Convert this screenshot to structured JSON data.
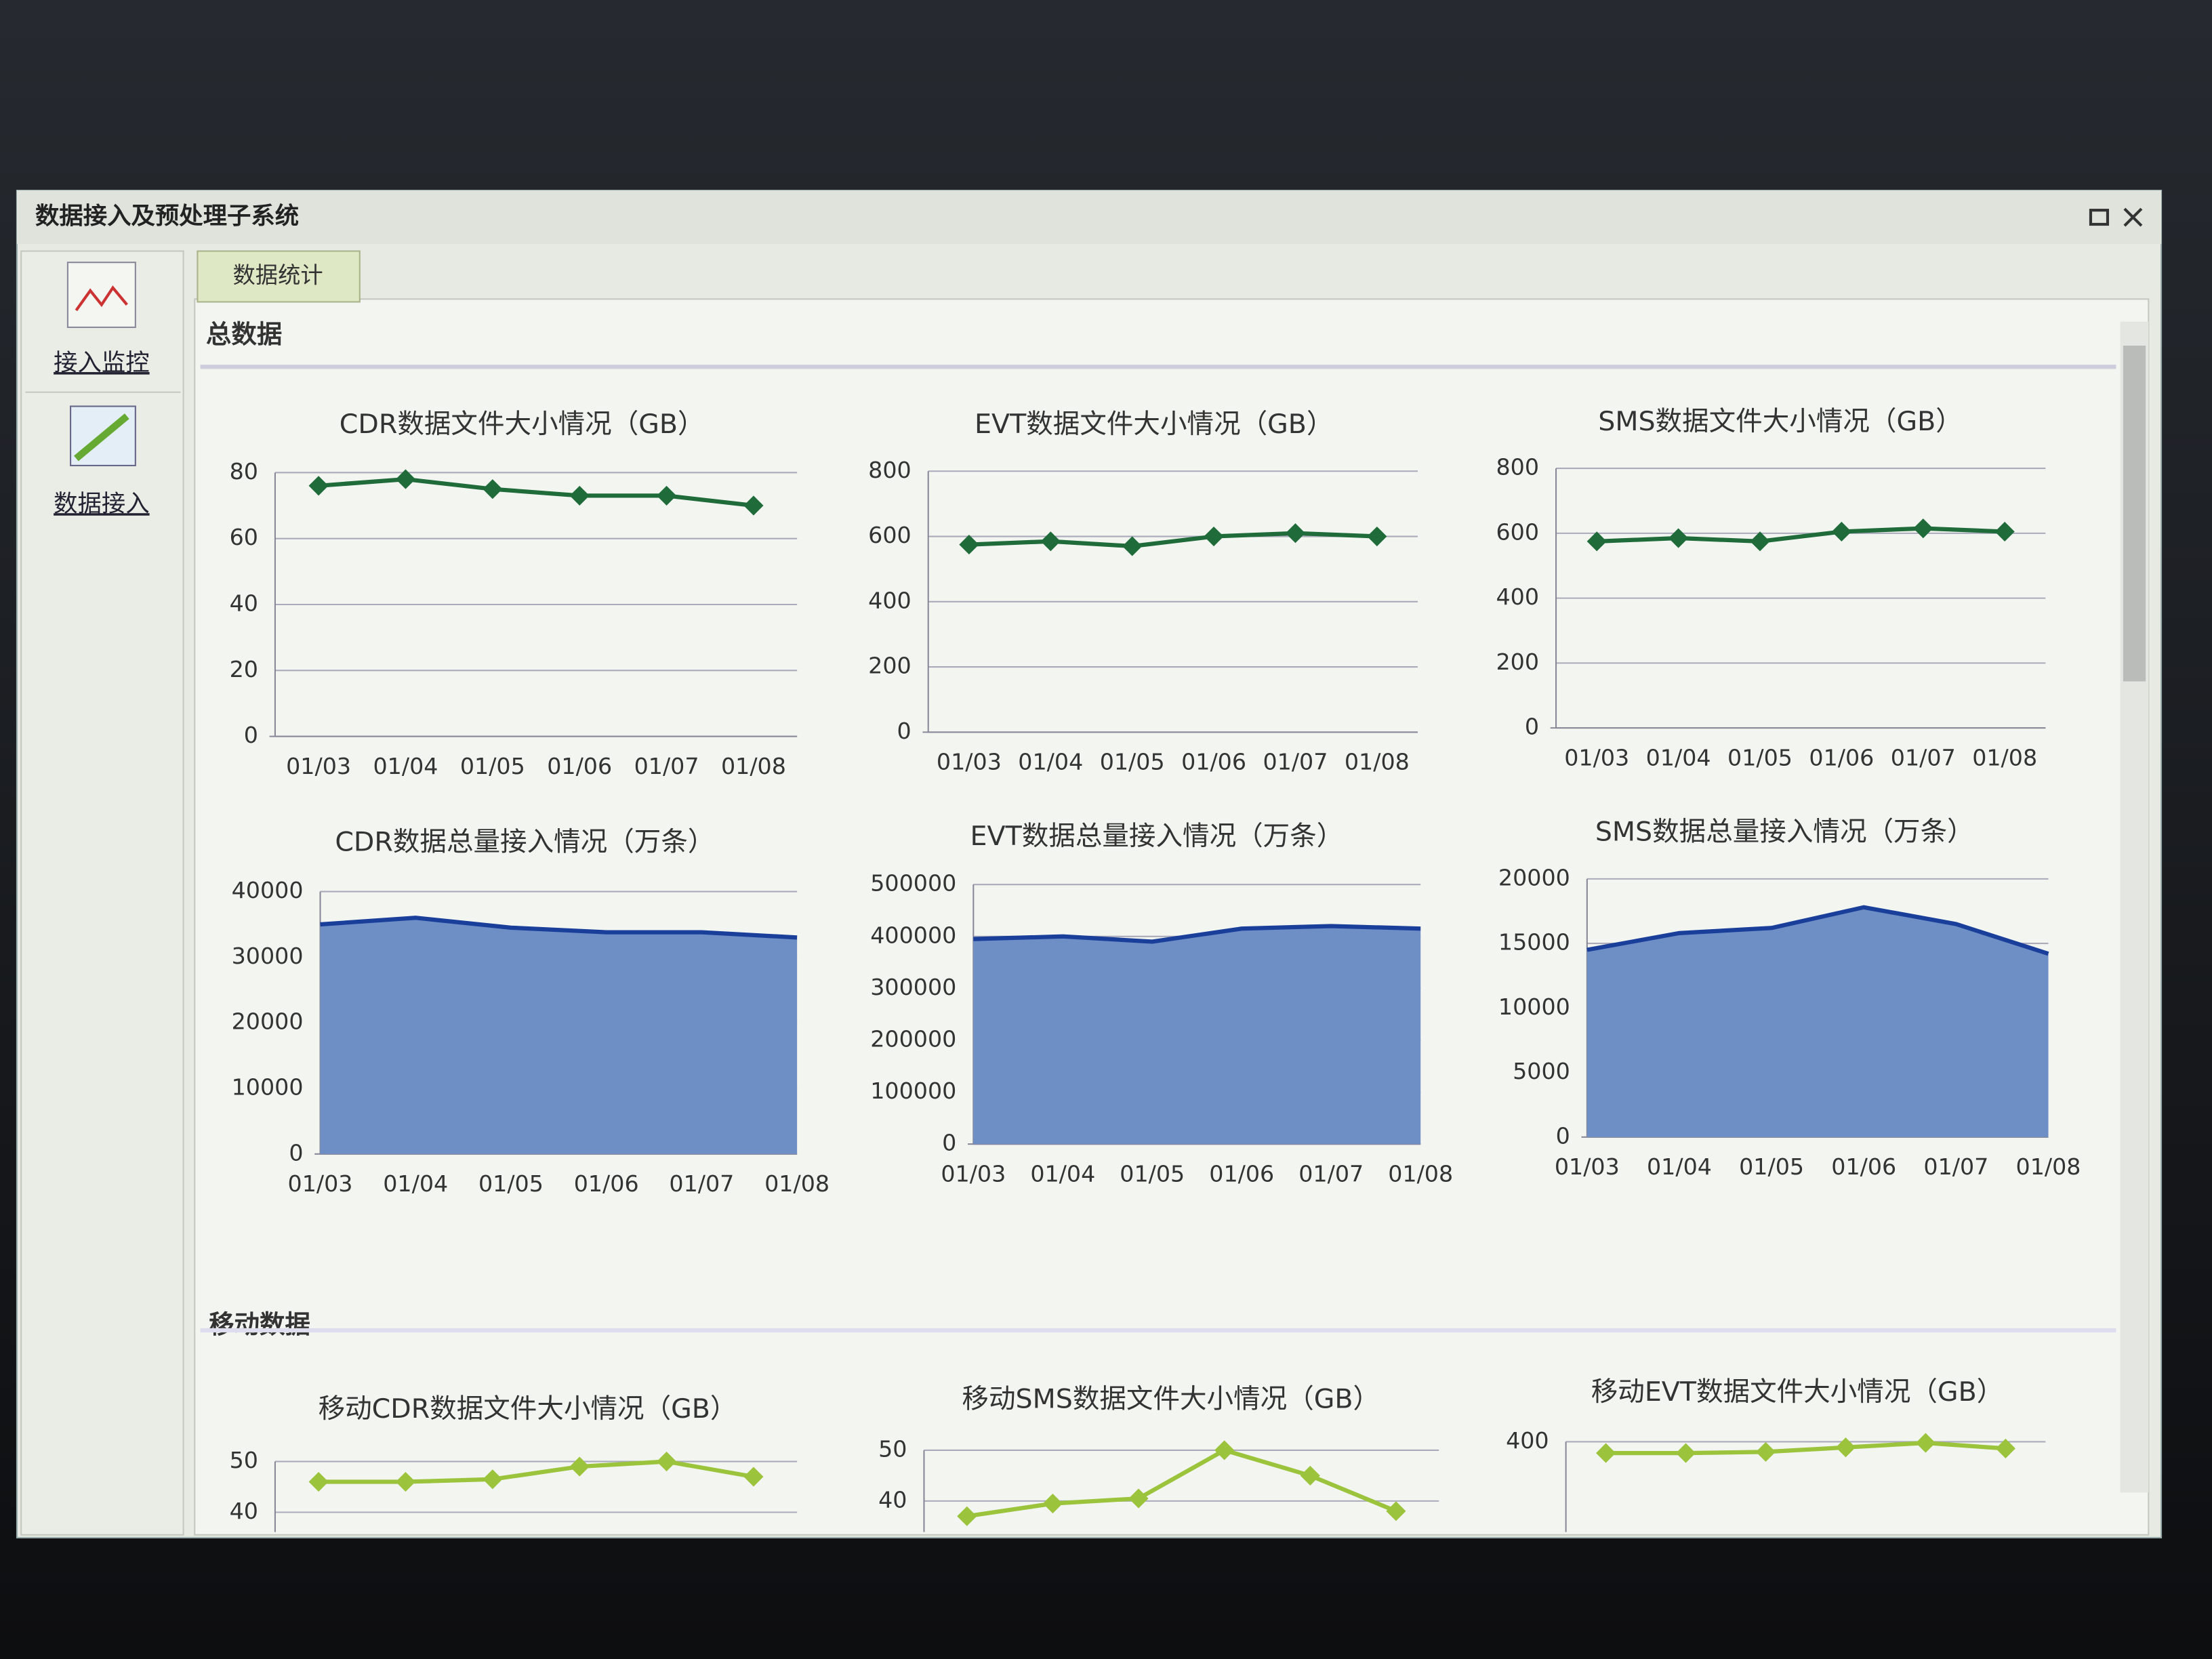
{
  "window_title": "数据接入及预处理子系统",
  "sidebar": [
    {
      "label": "接入监控"
    },
    {
      "label": "数据接入"
    }
  ],
  "tab": "数据统计",
  "sections": [
    "总数据",
    "移动数据"
  ],
  "chart_data": [
    {
      "type": "line",
      "title": "CDR数据文件大小情况（GB）",
      "categories": [
        "01/03",
        "01/04",
        "01/05",
        "01/06",
        "01/07",
        "01/08"
      ],
      "values": [
        76,
        78,
        75,
        73,
        73,
        70
      ],
      "color": "#1f6b3a",
      "marker": "diamond",
      "ylim": [
        0,
        80
      ],
      "yticks": [
        0,
        20,
        40,
        60,
        80
      ],
      "grid": true
    },
    {
      "type": "line",
      "title": "EVT数据文件大小情况（GB）",
      "categories": [
        "01/03",
        "01/04",
        "01/05",
        "01/06",
        "01/07",
        "01/08"
      ],
      "values": [
        575,
        585,
        570,
        600,
        610,
        600
      ],
      "color": "#1f6b3a",
      "marker": "diamond",
      "ylim": [
        0,
        800
      ],
      "yticks": [
        0,
        200,
        400,
        600,
        800
      ],
      "grid": true
    },
    {
      "type": "line",
      "title": "SMS数据文件大小情况（GB）",
      "categories": [
        "01/03",
        "01/04",
        "01/05",
        "01/06",
        "01/07",
        "01/08"
      ],
      "values": [
        575,
        585,
        575,
        605,
        615,
        605
      ],
      "color": "#1f6b3a",
      "marker": "diamond",
      "ylim": [
        0,
        800
      ],
      "yticks": [
        0,
        200,
        400,
        600,
        800
      ],
      "grid": true
    },
    {
      "type": "area",
      "title": "CDR数据总量接入情况（万条）",
      "categories": [
        "01/03",
        "01/04",
        "01/05",
        "01/06",
        "01/07",
        "01/08"
      ],
      "values": [
        35000,
        36000,
        34500,
        33800,
        33800,
        33000
      ],
      "color": "#1a3f9a",
      "fill_color": "#6d8fc6",
      "ylim": [
        0,
        40000
      ],
      "yticks": [
        0,
        10000,
        20000,
        30000,
        40000
      ],
      "grid": true
    },
    {
      "type": "area",
      "title": "EVT数据总量接入情况（万条）",
      "categories": [
        "01/03",
        "01/04",
        "01/05",
        "01/06",
        "01/07",
        "01/08"
      ],
      "values": [
        395000,
        400000,
        390000,
        415000,
        420000,
        415000
      ],
      "color": "#1a3f9a",
      "fill_color": "#6d8fc6",
      "ylim": [
        0,
        500000
      ],
      "yticks": [
        0,
        100000,
        200000,
        300000,
        400000,
        500000
      ],
      "grid": true
    },
    {
      "type": "area",
      "title": "SMS数据总量接入情况（万条）",
      "categories": [
        "01/03",
        "01/04",
        "01/05",
        "01/06",
        "01/07",
        "01/08"
      ],
      "values": [
        14500,
        15800,
        16200,
        17800,
        16500,
        14200
      ],
      "color": "#1a3f9a",
      "fill_color": "#6d8fc6",
      "ylim": [
        0,
        20000
      ],
      "yticks": [
        0,
        5000,
        10000,
        15000,
        20000
      ],
      "grid": true
    },
    {
      "type": "line",
      "title": "移动CDR数据文件大小情况（GB）",
      "values": [
        46,
        46,
        46.5,
        49,
        50,
        47
      ],
      "color": "#9bc43c",
      "marker": "diamond",
      "ylim": [
        0,
        50
      ],
      "yticks": [
        40,
        50
      ],
      "grid": true
    },
    {
      "type": "line",
      "title": "移动SMS数据文件大小情况（GB）",
      "values": [
        37,
        39.5,
        40.5,
        50,
        45,
        38
      ],
      "color": "#9bc43c",
      "marker": "diamond",
      "ylim": [
        0,
        50
      ],
      "yticks": [
        40,
        50
      ],
      "grid": true
    },
    {
      "type": "line",
      "title": "移动EVT数据文件大小情况（GB）",
      "values": [
        380,
        380,
        382,
        390,
        398,
        388
      ],
      "color": "#9bc43c",
      "marker": "diamond",
      "ylim": [
        0,
        400
      ],
      "yticks": [
        400
      ],
      "grid": true
    }
  ]
}
